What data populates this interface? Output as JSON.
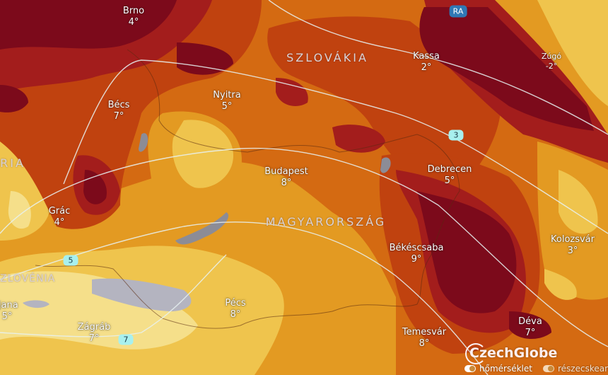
{
  "map": {
    "colors": {
      "darkest": "#7c0a1b",
      "dark_red": "#a31d1c",
      "red_orange": "#c0420f",
      "orange": "#d46a12",
      "amber": "#e39a22",
      "yellow": "#efc44d",
      "pale_yellow": "#f5df8a",
      "lake": "#8c8c96",
      "isotherm": "#e8f2f2"
    },
    "countries": [
      "SZLOVÁKIA",
      "MAGYARORSZÁG",
      "RIA",
      "ZLOVÉNIA"
    ],
    "cities": [
      {
        "name": "Brno",
        "temp": "4°"
      },
      {
        "name": "Bécs",
        "temp": "7°"
      },
      {
        "name": "Nyitra",
        "temp": "5°"
      },
      {
        "name": "Budapest",
        "temp": "8°"
      },
      {
        "name": "Kassa",
        "temp": "2°"
      },
      {
        "name": "Zúgó",
        "temp": "-2°"
      },
      {
        "name": "Debrecen",
        "temp": "5°"
      },
      {
        "name": "Kolozsvár",
        "temp": "3°"
      },
      {
        "name": "Békéscsaba",
        "temp": "9°"
      },
      {
        "name": "Grác",
        "temp": "4°"
      },
      {
        "name": "Pécs",
        "temp": "8°"
      },
      {
        "name": "Zágráb",
        "temp": "7°"
      },
      {
        "name": "Temesvár",
        "temp": "8°"
      },
      {
        "name": "Déva",
        "temp": "7°"
      },
      {
        "name": "ljana",
        "temp": "5°"
      }
    ],
    "isotherms": [
      "3",
      "5",
      "7"
    ],
    "road_badge": "RA",
    "logo": "CzechGlobe"
  },
  "layers": [
    {
      "label": "hőmérséklet",
      "enabled": true
    },
    {
      "label": "részecskeanimáció",
      "enabled": true
    }
  ]
}
